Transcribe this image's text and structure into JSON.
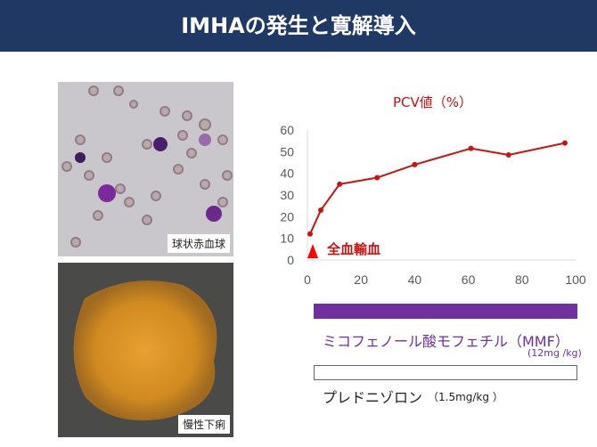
{
  "header": {
    "title": "IMHAの発生と寛解導入"
  },
  "photos": {
    "top_caption": "球状赤血球",
    "bottom_caption": "慢性下痢"
  },
  "chart_data": {
    "type": "line",
    "title": "PCV値（%）",
    "x": [
      1,
      5,
      12,
      26,
      40,
      61,
      75,
      96
    ],
    "values": [
      12,
      23,
      35,
      38,
      44,
      51.5,
      48.5,
      54
    ],
    "xlim": [
      0,
      100
    ],
    "ylim": [
      0,
      60
    ],
    "xticks": [
      "0",
      "20",
      "40",
      "60",
      "80",
      "100"
    ],
    "yticks": [
      "0",
      "10",
      "20",
      "30",
      "40",
      "50",
      "60"
    ],
    "color": "#cc1111",
    "annotation": {
      "label": "全血輸血",
      "x": 2
    }
  },
  "treatments": {
    "mmf_label": "ミコフェノール酸モフェチル（MMF）",
    "mmf_dose": "(12mg /kg)",
    "mmf_color": "#7030a0",
    "pred_label": "プレドニゾロン",
    "pred_dose": "（1.5mg/kg ）"
  }
}
